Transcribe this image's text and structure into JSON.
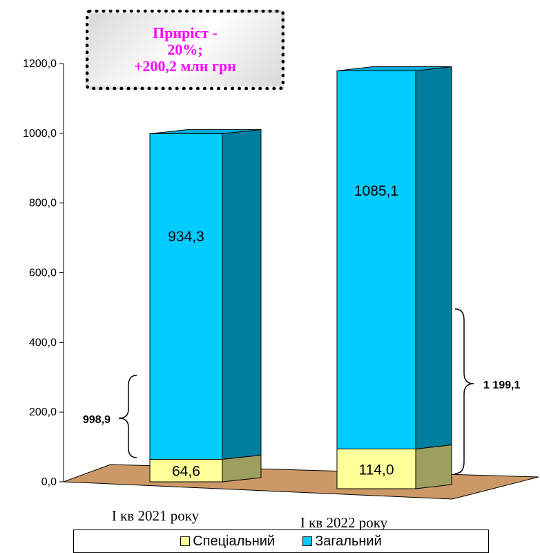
{
  "chart_data": {
    "type": "bar",
    "stacked": true,
    "three_d": true,
    "categories": [
      "I кв 2021 року",
      "I кв 2022 року"
    ],
    "series": [
      {
        "name": "Спеціальний",
        "values": [
          64.6,
          114.0
        ],
        "value_labels": [
          "64,6",
          "114,0"
        ],
        "color": "#ffff99"
      },
      {
        "name": "Загальний",
        "values": [
          934.3,
          1085.1
        ],
        "value_labels": [
          "934,3",
          "1085,1"
        ],
        "color": "#00ccff"
      }
    ],
    "totals": [
      998.9,
      1199.1
    ],
    "total_labels": [
      "998,9",
      "1 199,1"
    ],
    "y_ticks": [
      "0,0",
      "200,0",
      "400,0",
      "600,0",
      "800,0",
      "1000,0",
      "1200,0"
    ],
    "ylim": [
      0,
      1200
    ],
    "floor_color": "#cc9966",
    "legend_position": "bottom",
    "annotation": [
      "Приріст -",
      "20%;",
      "+200,2 млн грн"
    ],
    "annotation_color": "#ff00ff"
  }
}
